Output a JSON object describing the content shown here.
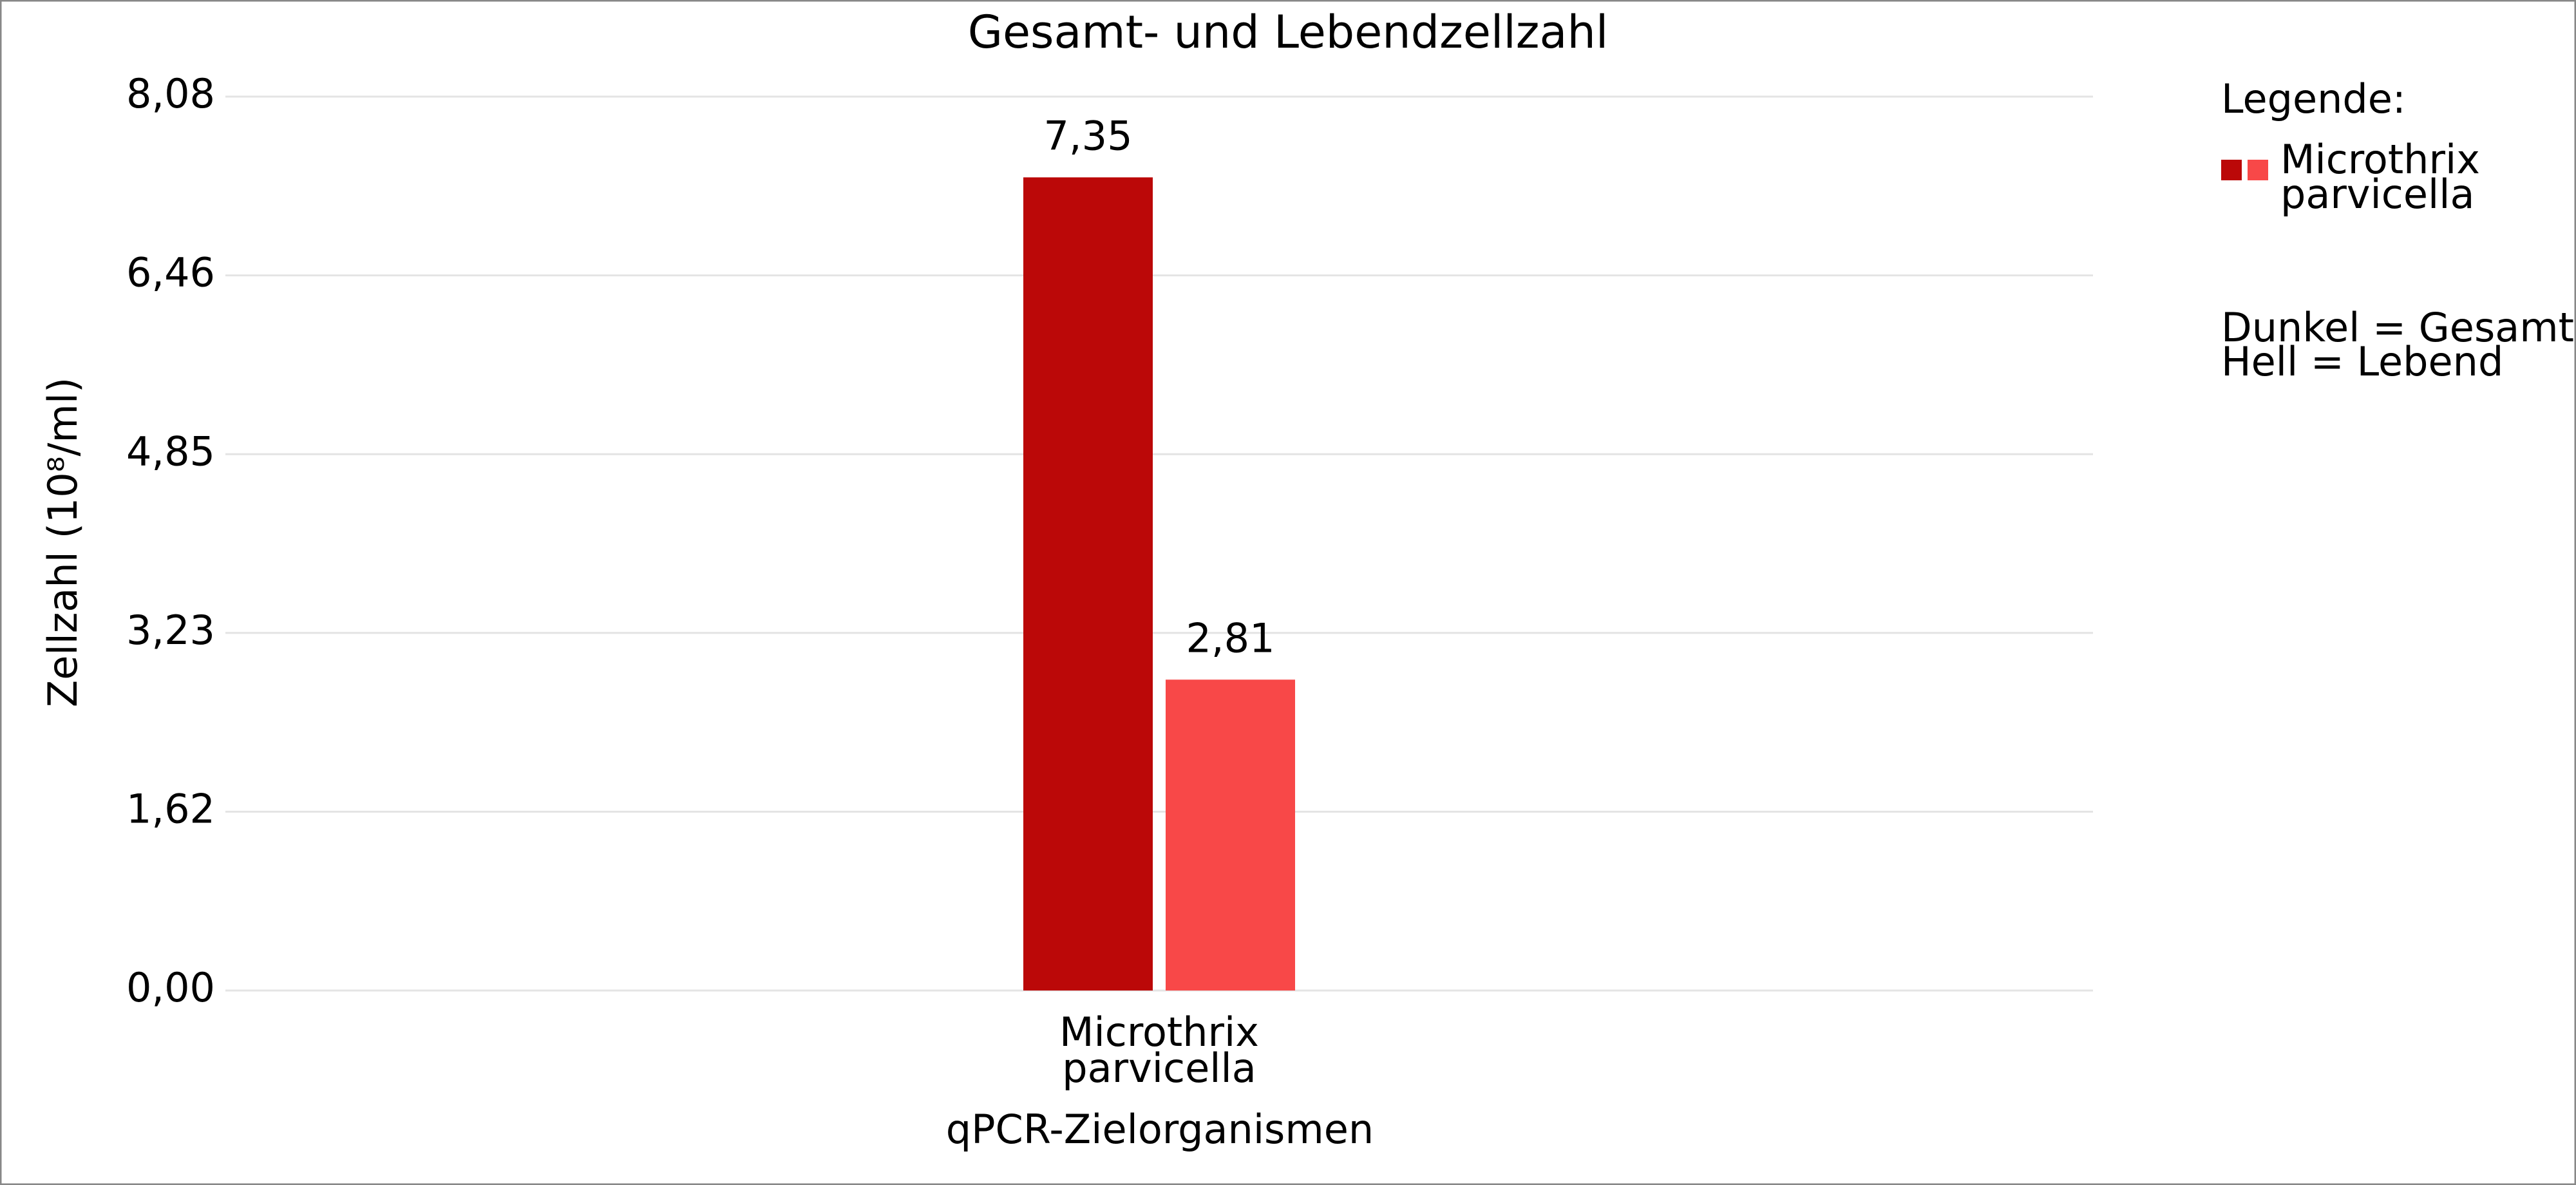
{
  "chart_data": {
    "type": "bar",
    "title": "Gesamt- und Lebendzellzahl",
    "y_label": "Zellzahl (10⁸/ml)",
    "x_label": "qPCR-Zielorganismen",
    "categories": [
      "Microthrix parvicella"
    ],
    "series": [
      {
        "color": "#bb0808",
        "values": [
          7.35
        ],
        "value_labels": [
          "7,35"
        ]
      },
      {
        "color": "#f84848",
        "values": [
          2.81
        ],
        "value_labels": [
          "2,81"
        ]
      }
    ],
    "ylim": [
      0,
      8.08
    ],
    "yticks": [
      {
        "value": 0,
        "label": "0,00"
      },
      {
        "value": 1.616,
        "label": "1,62"
      },
      {
        "value": 3.232,
        "label": "3,23"
      },
      {
        "value": 4.848,
        "label": "4,85"
      },
      {
        "value": 6.464,
        "label": "6,46"
      },
      {
        "value": 8.08,
        "label": "8,08"
      }
    ],
    "grid": true,
    "legend": {
      "title": "Legende:",
      "label": "Microthrix parvicella",
      "notes": [
        "Dunkel = Gesamt",
        "Hell = Lebend"
      ]
    }
  }
}
